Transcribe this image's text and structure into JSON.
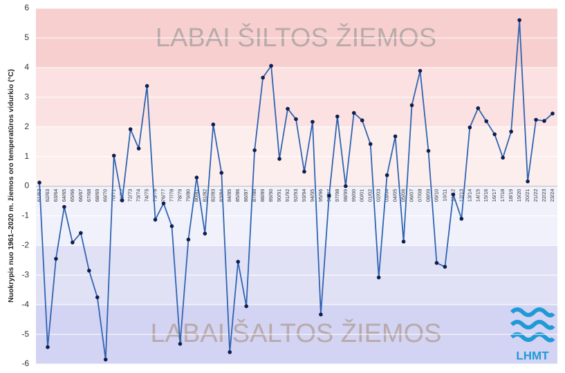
{
  "chart_data": {
    "type": "line",
    "y_axis_label": "Nuokrypis nuo 1961–2020 m. žiemos oro temperatūros vidurkio (°C)",
    "annotations": [
      "LABAI ŠILTOS ŽIEMOS",
      "LABAI ŠALTOS ŽIEMOS"
    ],
    "logo": "LHMT",
    "categories": [
      "61/62",
      "62/63",
      "63/64",
      "64/65",
      "65/66",
      "66/67",
      "67/68",
      "68/69",
      "69/70",
      "70/71",
      "71/72",
      "72/73",
      "73/74",
      "74/75",
      "75/76",
      "76/77",
      "77/78",
      "78/79",
      "79/80",
      "80/81",
      "81/82",
      "82/83",
      "83/84",
      "84/85",
      "85/86",
      "86/87",
      "87/88",
      "88/89",
      "89/90",
      "90/91",
      "91/92",
      "92/93",
      "93/94",
      "94/95",
      "95/96",
      "96/97",
      "97/98",
      "98/99",
      "99/00",
      "00/01",
      "01/02",
      "02/03",
      "03/04",
      "04/05",
      "05/06",
      "06/07",
      "07/08",
      "08/09",
      "09/10",
      "10/11",
      "11/12",
      "12/13",
      "13/14",
      "14/15",
      "15/16",
      "16/17",
      "17/18",
      "18/19",
      "19/20",
      "20/21",
      "21/22",
      "22/23",
      "23/24"
    ],
    "series": [
      {
        "name": "Nuokrypis",
        "color": "#2e63b0",
        "values": [
          0.12,
          -5.43,
          -2.45,
          -0.7,
          -1.9,
          -1.58,
          -2.85,
          -3.75,
          -5.85,
          1.03,
          -0.48,
          1.92,
          1.27,
          3.38,
          -1.13,
          -0.58,
          -1.35,
          -5.32,
          -1.8,
          0.29,
          -1.6,
          2.08,
          0.45,
          -5.6,
          -2.55,
          -4.05,
          1.21,
          3.66,
          4.06,
          0.92,
          2.61,
          2.26,
          0.49,
          2.17,
          -4.33,
          -0.32,
          2.35,
          0.0,
          2.47,
          2.22,
          1.42,
          -3.08,
          0.37,
          1.68,
          -1.87,
          2.73,
          3.89,
          1.19,
          -2.59,
          -2.72,
          -0.28,
          -1.1,
          1.98,
          2.63,
          2.19,
          1.75,
          0.96,
          1.84,
          5.6,
          0.16,
          2.24,
          2.2,
          2.45
        ]
      }
    ],
    "ylim": [
      -6,
      6
    ],
    "yticks": [
      -6,
      -5,
      -4,
      -3,
      -2,
      -1,
      0,
      1,
      2,
      3,
      4,
      5,
      6
    ],
    "grid": true,
    "bands": [
      {
        "from": 4,
        "to": 6,
        "color": "#f8cfcf"
      },
      {
        "from": 2,
        "to": 4,
        "color": "#fbe1e1"
      },
      {
        "from": 0,
        "to": 2,
        "color": "#fdeeee"
      },
      {
        "from": -2,
        "to": 0,
        "color": "#f1f1fb"
      },
      {
        "from": -4,
        "to": -2,
        "color": "#e1e1f6"
      },
      {
        "from": -6,
        "to": -4,
        "color": "#d3d3f3"
      }
    ]
  }
}
